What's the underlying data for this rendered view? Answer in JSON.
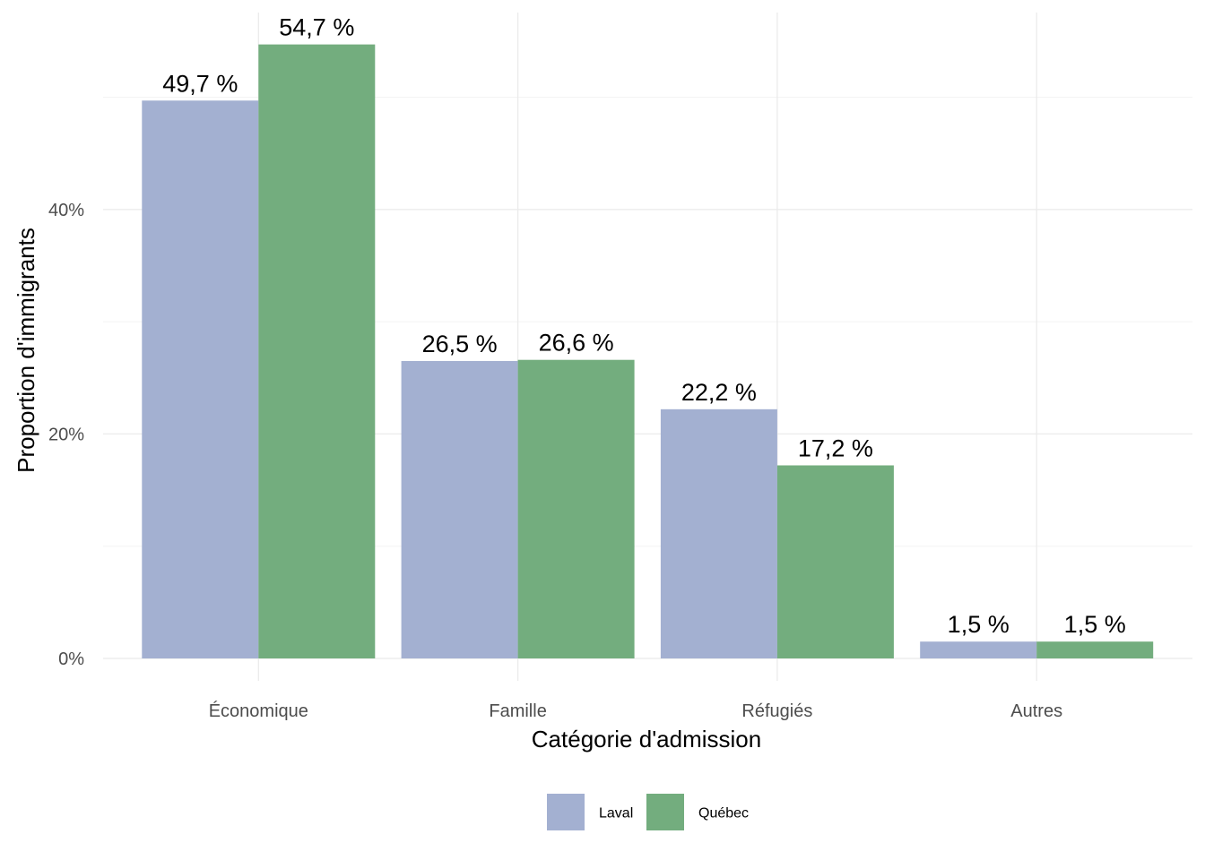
{
  "chart_data": {
    "type": "bar",
    "title": "",
    "xlabel": "Catégorie d'admission",
    "ylabel": "Proportion d'immigrants",
    "categories": [
      "Économique",
      "Famille",
      "Réfugiés",
      "Autres"
    ],
    "series": [
      {
        "name": "Laval",
        "color": "#a3b0d1",
        "values": [
          49.7,
          26.5,
          22.2,
          1.5
        ],
        "labels": [
          "49,7 %",
          "26,5 %",
          "22,2 %",
          "1,5 %"
        ]
      },
      {
        "name": "Québec",
        "color": "#73ad7e",
        "values": [
          54.7,
          26.6,
          17.2,
          1.5
        ],
        "labels": [
          "54,7 %",
          "26,6 %",
          "17,2 %",
          "1,5 %"
        ]
      }
    ],
    "yticks": [
      0,
      20,
      40
    ],
    "ytick_labels": [
      "0%",
      "20%",
      "40%"
    ],
    "ylim": [
      -1.5,
      57.3
    ],
    "grid": true,
    "legend_position": "bottom"
  }
}
